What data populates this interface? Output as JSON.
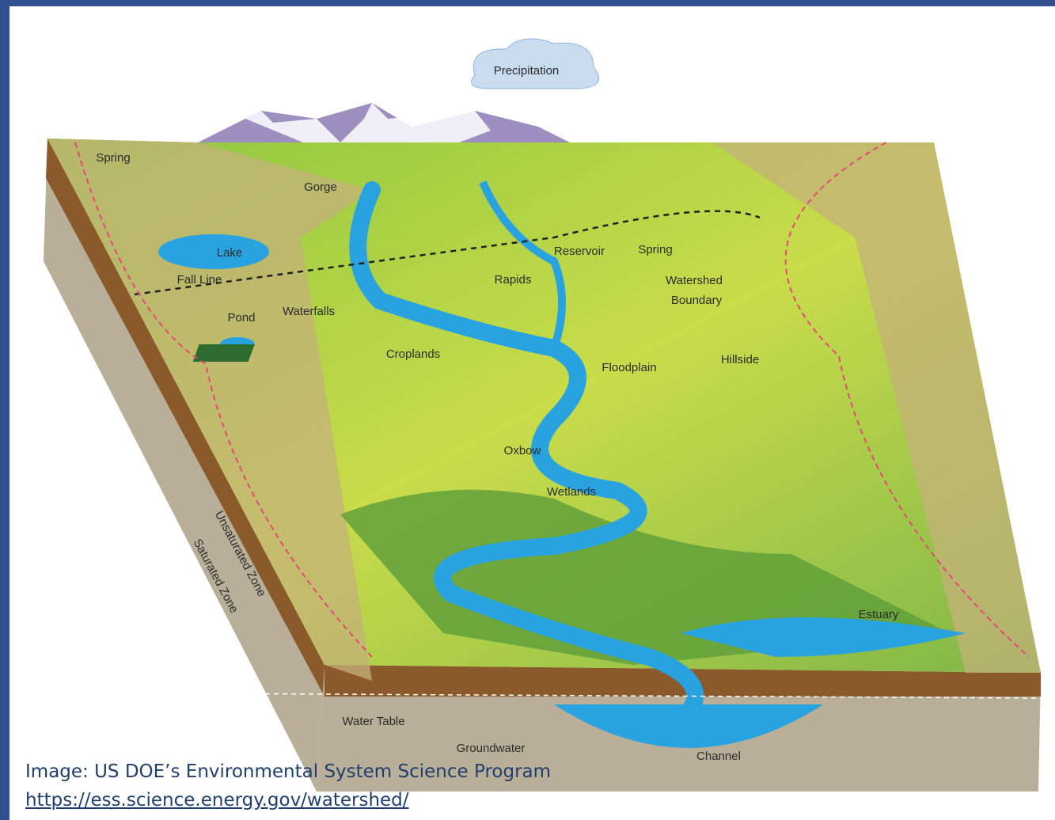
{
  "diagram": {
    "labels": [
      "Precipitation",
      "Spring",
      "Gorge",
      "Lake",
      "Fall Line",
      "Pond",
      "Waterfalls",
      "Reservoir",
      "Spring",
      "Rapids",
      "Watershed",
      "Boundary",
      "Croplands",
      "Floodplain",
      "Hillside",
      "Oxbow",
      "Wetlands",
      "Unsaturated Zone",
      "Saturated Zone",
      "Estuary",
      "Water Table",
      "Groundwater",
      "Channel"
    ]
  },
  "caption": {
    "credit": "Image: US DOE’s Environmental System Science Program",
    "link": "https://ess.science.energy.gov/watershed/"
  }
}
